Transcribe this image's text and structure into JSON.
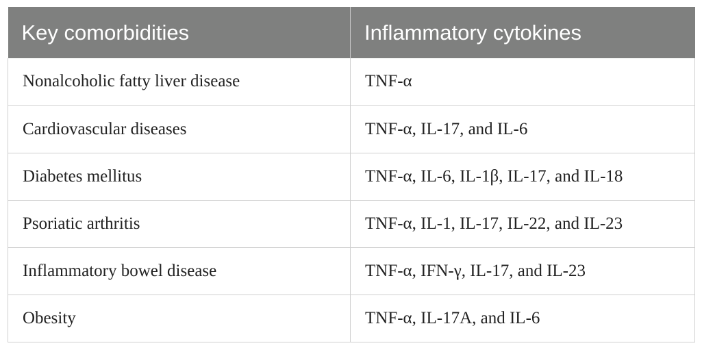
{
  "table": {
    "headers": [
      "Key comorbidities",
      "Inflammatory cytokines"
    ],
    "rows": [
      [
        "Nonalcoholic fatty liver disease",
        "TNF-α"
      ],
      [
        "Cardiovascular diseases",
        "TNF-α, IL-17, and IL-6"
      ],
      [
        "Diabetes mellitus",
        "TNF-α, IL-6, IL-1β, IL-17, and IL-18"
      ],
      [
        "Psoriatic arthritis",
        "TNF-α, IL-1, IL-17, IL-22, and IL-23"
      ],
      [
        "Inflammatory bowel disease",
        "TNF-α, IFN-γ, IL-17, and IL-23"
      ],
      [
        "Obesity",
        "TNF-α, IL-17A, and IL-6"
      ]
    ]
  },
  "colors": {
    "header_bg": "#7f807f",
    "header_text": "#ffffff",
    "grid": "#cfcfcf"
  }
}
